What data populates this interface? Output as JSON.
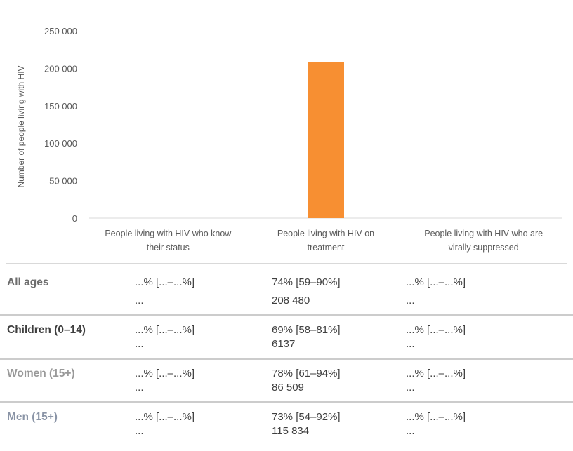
{
  "chart_data": {
    "type": "bar",
    "ylabel": "Number of people living with HIV",
    "ylim": [
      0,
      250000
    ],
    "yticks": [
      "250 000",
      "200 000",
      "150 000",
      "100 000",
      "50 000",
      "0"
    ],
    "ytick_values": [
      250000,
      200000,
      150000,
      100000,
      50000,
      0
    ],
    "categories": [
      [
        "People living with HIV who know",
        "their status"
      ],
      [
        "People living with HIV on",
        "treatment"
      ],
      [
        "People living with HIV who are",
        "virally suppressed"
      ]
    ],
    "values": [
      null,
      208480,
      null
    ],
    "bar_color": "#f78f32"
  },
  "table": {
    "rows": [
      {
        "label": "All ages",
        "label_color": "#6d6d6d",
        "cells": [
          [
            "...% [...–...%]",
            "..."
          ],
          [
            "74% [59–90%]",
            "208 480"
          ],
          [
            "...% [...–...%]",
            "..."
          ]
        ]
      },
      {
        "label": "Children (0–14)",
        "label_color": "#3f3f3f",
        "cells": [
          [
            "...% [...–...%]",
            "..."
          ],
          [
            "69% [58–81%]",
            "6137"
          ],
          [
            "...% [...–...%]",
            "..."
          ]
        ]
      },
      {
        "label": "Women (15+)",
        "label_color": "#999999",
        "cells": [
          [
            "...% [...–...%]",
            "..."
          ],
          [
            "78% [61–94%]",
            "86 509"
          ],
          [
            "...% [...–...%]",
            "..."
          ]
        ]
      },
      {
        "label": "Men (15+)",
        "label_color": "#8a94a6",
        "cells": [
          [
            "...% [...–...%]",
            "..."
          ],
          [
            "73% [54–92%]",
            "115 834"
          ],
          [
            "...% [...–...%]",
            "..."
          ]
        ]
      }
    ]
  }
}
